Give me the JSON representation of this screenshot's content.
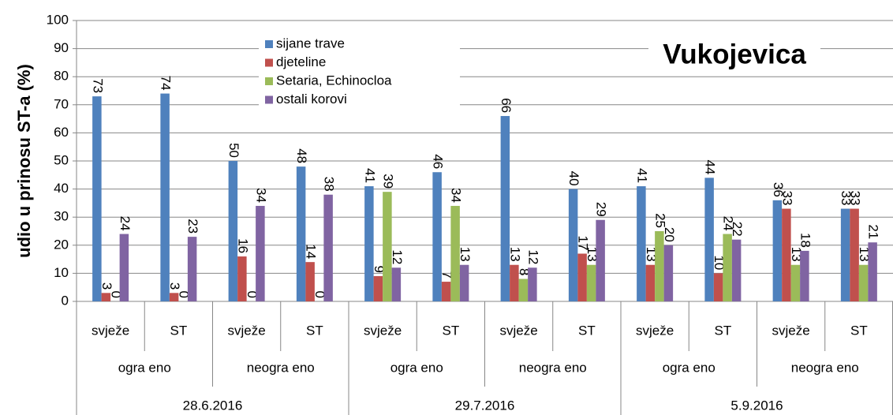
{
  "chart_data": {
    "type": "bar",
    "annotation": "Vukojevica",
    "y_label": "udio u prinosu ST-a (%)",
    "categories": [
      "svježe",
      "ST",
      "svježe",
      "ST",
      "svježe",
      "ST",
      "svježe",
      "ST",
      "svježe",
      "ST",
      "svježe",
      "ST"
    ],
    "subgroups": [
      "ogra eno",
      "neogra eno",
      "ogra eno",
      "neogra eno",
      "ogra eno",
      "neogra eno"
    ],
    "groups": [
      "28.6.2016",
      "29.7.2016",
      "5.9.2016"
    ],
    "series": [
      {
        "name": "sijane trave",
        "color": "#4f81bd",
        "values": [
          73,
          74,
          50,
          48,
          41,
          46,
          66,
          40,
          41,
          44,
          36,
          33
        ]
      },
      {
        "name": "djeteline",
        "color": "#c0504d",
        "values": [
          3,
          3,
          16,
          14,
          9,
          7,
          13,
          17,
          13,
          10,
          33,
          33
        ]
      },
      {
        "name": "Setaria, Echinocloa",
        "color": "#9bbb59",
        "values": [
          0,
          0,
          0,
          0,
          39,
          34,
          8,
          13,
          25,
          24,
          13,
          13
        ]
      },
      {
        "name": "ostali korovi",
        "color": "#8064a2",
        "values": [
          24,
          23,
          34,
          38,
          12,
          13,
          12,
          29,
          20,
          22,
          18,
          21
        ]
      }
    ],
    "ylim": [
      0,
      100
    ],
    "yticks": [
      0,
      10,
      20,
      30,
      40,
      50,
      60,
      70,
      80,
      90,
      100
    ],
    "grid": true,
    "legend": "top-left"
  }
}
